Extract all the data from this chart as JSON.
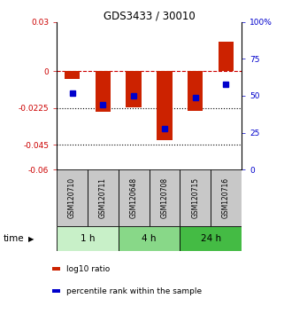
{
  "title": "GDS3433 / 30010",
  "samples": [
    "GSM120710",
    "GSM120711",
    "GSM120648",
    "GSM120708",
    "GSM120715",
    "GSM120716"
  ],
  "log10_ratio": [
    -0.005,
    -0.025,
    -0.022,
    -0.042,
    -0.024,
    0.018
  ],
  "percentile_rank": [
    52,
    44,
    50,
    28,
    49,
    58
  ],
  "time_groups": [
    {
      "label": "1 h",
      "color": "#c8f0c8",
      "start": 0,
      "end": 2
    },
    {
      "label": "4 h",
      "color": "#88d888",
      "start": 2,
      "end": 4
    },
    {
      "label": "24 h",
      "color": "#44bb44",
      "start": 4,
      "end": 6
    }
  ],
  "ylim_left": [
    -0.06,
    0.03
  ],
  "ylim_right": [
    0,
    100
  ],
  "yticks_left": [
    0.03,
    0,
    -0.0225,
    -0.045,
    -0.06
  ],
  "yticks_right": [
    100,
    75,
    50,
    25,
    0
  ],
  "ytick_labels_left": [
    "0.03",
    "0",
    "-0.0225",
    "-0.045",
    "-0.06"
  ],
  "ytick_labels_right": [
    "100%",
    "75",
    "50",
    "25",
    "0"
  ],
  "hlines": [
    0,
    -0.0225,
    -0.045
  ],
  "hline_styles": [
    "dashed",
    "dotted",
    "dotted"
  ],
  "hline_colors": [
    "#cc0000",
    "#000000",
    "#000000"
  ],
  "bar_color": "#cc2200",
  "dot_color": "#0000cc",
  "legend_items": [
    "log10 ratio",
    "percentile rank within the sample"
  ],
  "legend_colors": [
    "#cc2200",
    "#0000cc"
  ],
  "sample_bg_color": "#c8c8c8",
  "bar_width": 0.5,
  "title_fontsize": 8.5
}
